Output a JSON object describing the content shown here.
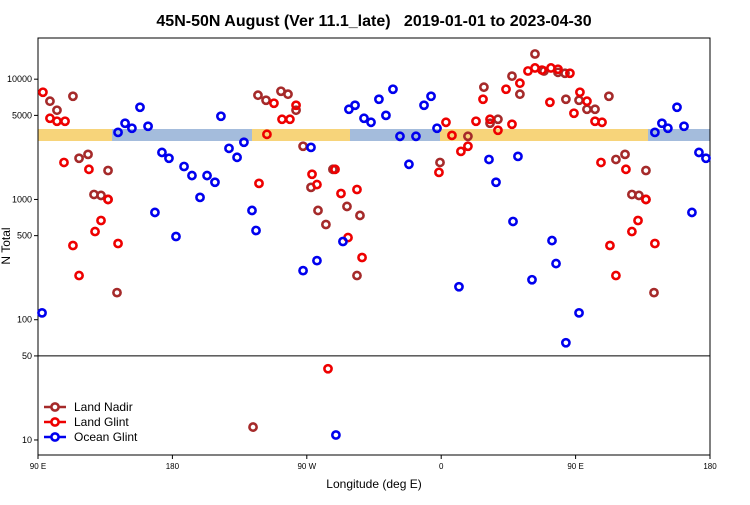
{
  "chart_data": {
    "type": "scatter",
    "title": "45N-50N August (Ver 11.1_late)   2019-01-01 to 2023-04-30",
    "x_label": "Longitude (deg E)",
    "y_label": "N Total",
    "xlim": [
      90,
      540
    ],
    "xticks": [
      {
        "value": 90,
        "label": "90 E"
      },
      {
        "value": 180,
        "label": "180"
      },
      {
        "value": 270,
        "label": "90 W"
      },
      {
        "value": 360,
        "label": "0"
      },
      {
        "value": 450,
        "label": "90 E"
      },
      {
        "value": 540,
        "label": "180"
      }
    ],
    "ylim": [
      7.5,
      22000
    ],
    "y_log": true,
    "yticks": [
      10,
      50,
      100,
      500,
      1000,
      5000,
      10000
    ],
    "hline": 50,
    "legend": "bottom-left",
    "series": [
      {
        "name": "Land Nadir",
        "color": "#a52a2a",
        "x": [
          98.0,
          102.7,
          113.4,
          117.5,
          123.5,
          127.5,
          132.2,
          136.9,
          136.9,
          142.9,
          234.0,
          237.3,
          242.7,
          252.7,
          257.4,
          262.8,
          267.5,
          272.8,
          277.5,
          282.8,
          287.5,
          296.9,
          303.6,
          305.6,
          359.2,
          377.9,
          388.6,
          392.7,
          398.0,
          407.4,
          412.7,
          422.8,
          428.8,
          438.2,
          442.9,
          443.5,
          452.3,
          457.6,
          463.0,
          472.3,
          477.0,
          483.1,
          487.7,
          492.4,
          497.1,
          497.1,
          502.5
        ],
        "values": [
          6560,
          5520,
          7210,
          2200,
          2370,
          1100,
          1080,
          1740,
          1000,
          168,
          12.8,
          7360,
          6680,
          7940,
          7500,
          5520,
          2770,
          1260,
          810,
          619,
          1780,
          875,
          233,
          736,
          2030,
          3350,
          8580,
          4300,
          4640,
          10600,
          7500,
          16200,
          11700,
          11400,
          11200,
          6810,
          6680,
          5620,
          5620,
          7210,
          2150,
          2370,
          1100,
          1080,
          1740,
          1000,
          168
        ]
      },
      {
        "name": "Land Glint",
        "color": "#ee0000",
        "x": [
          93.3,
          98.0,
          102.7,
          108.1,
          107.4,
          113.4,
          117.5,
          124.1,
          128.2,
          132.2,
          136.9,
          143.6,
          238.0,
          243.3,
          248.0,
          253.4,
          258.7,
          262.8,
          273.5,
          276.8,
          284.2,
          288.9,
          292.9,
          297.6,
          303.6,
          307.0,
          358.5,
          363.2,
          367.2,
          373.2,
          377.9,
          383.3,
          388.0,
          392.7,
          398.0,
          403.4,
          407.4,
          412.7,
          418.1,
          422.8,
          427.5,
          432.8,
          433.5,
          438.2,
          446.2,
          448.9,
          452.9,
          457.6,
          463.0,
          467.7,
          467.0,
          473.0,
          477.0,
          483.7,
          487.7,
          491.8,
          497.1,
          503.1
        ],
        "values": [
          7790,
          4730,
          4470,
          4470,
          2030,
          414,
          233,
          1780,
          541,
          668,
          1000,
          430,
          1360,
          3480,
          6310,
          4640,
          4640,
          6070,
          1620,
          1330,
          39.1,
          1780,
          1120,
          482,
          1210,
          329,
          1680,
          4380,
          3410,
          2510,
          2770,
          4470,
          6810,
          4640,
          3760,
          8250,
          4220,
          9260,
          11700,
          12400,
          11900,
          6430,
          12400,
          12100,
          11200,
          5210,
          7790,
          6560,
          4470,
          4380,
          2030,
          414,
          233,
          1780,
          541,
          668,
          1000,
          430
        ]
      },
      {
        "name": "Ocean Glint",
        "color": "#0000ee",
        "x": [
          92.7,
          143.6,
          148.3,
          152.9,
          158.3,
          163.7,
          168.3,
          173.0,
          177.7,
          182.4,
          187.8,
          193.1,
          198.5,
          203.2,
          208.5,
          212.5,
          217.9,
          223.3,
          227.9,
          233.3,
          236.0,
          267.5,
          272.8,
          276.8,
          289.5,
          294.2,
          298.2,
          302.3,
          308.3,
          313.0,
          318.3,
          323.0,
          327.7,
          332.4,
          338.4,
          343.1,
          348.5,
          353.2,
          357.2,
          371.9,
          392.0,
          396.7,
          408.1,
          411.4,
          420.8,
          434.2,
          436.9,
          443.5,
          452.3,
          503.1,
          507.8,
          511.8,
          517.9,
          522.6,
          527.9,
          532.6,
          537.3
        ],
        "values": [
          114,
          3610,
          4300,
          3910,
          5840,
          4060,
          780,
          2460,
          2200,
          492,
          1880,
          1580,
          1040,
          1580,
          1390,
          4920,
          2660,
          2240,
          2990,
          810,
          552,
          256,
          2710,
          310,
          11.0,
          447,
          5620,
          6070,
          4730,
          4380,
          6810,
          5000,
          8250,
          3350,
          1960,
          3350,
          6070,
          7210,
          3910,
          188,
          2150,
          1390,
          656,
          2280,
          215,
          455,
          293,
          64.3,
          114,
          3610,
          4300,
          3910,
          5840,
          4060,
          780,
          2460,
          2200
        ]
      }
    ]
  }
}
